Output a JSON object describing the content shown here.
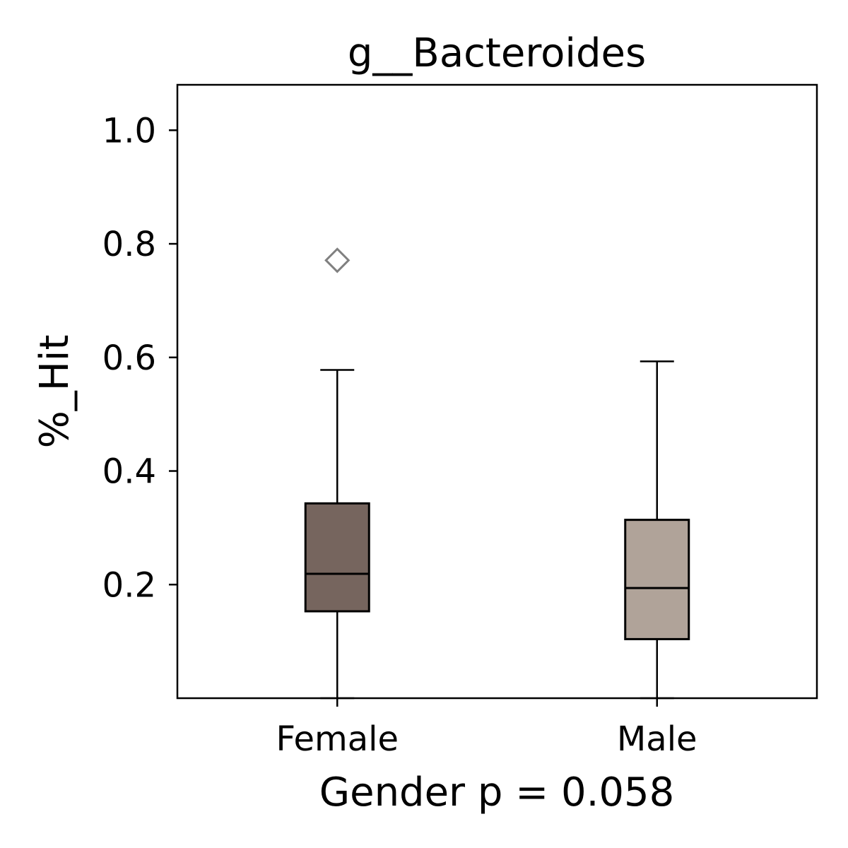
{
  "chart_data": {
    "type": "box",
    "title": "g__Bacteroides",
    "xlabel": "Gender p = 0.058",
    "ylabel": "%_Hit",
    "ylim": [
      0.0,
      1.08
    ],
    "yticks": [
      0.2,
      0.4,
      0.6,
      0.8,
      1.0
    ],
    "ytick_labels": [
      "0.2",
      "0.4",
      "0.6",
      "0.8",
      "1.0"
    ],
    "categories": [
      "Female",
      "Male"
    ],
    "boxes": [
      {
        "category": "Female",
        "whisker_low": 0.0,
        "q1": 0.153,
        "median": 0.219,
        "q3": 0.343,
        "whisker_high": 0.578,
        "outliers": [
          0.771
        ],
        "color": "#76655e"
      },
      {
        "category": "Male",
        "whisker_low": 0.0,
        "q1": 0.104,
        "median": 0.194,
        "q3": 0.314,
        "whisker_high": 0.593,
        "outliers": [],
        "color": "#b0a399"
      }
    ],
    "outlier_marker": "diamond-open",
    "outlier_color": "#808080",
    "grid": false,
    "legend": "none"
  }
}
